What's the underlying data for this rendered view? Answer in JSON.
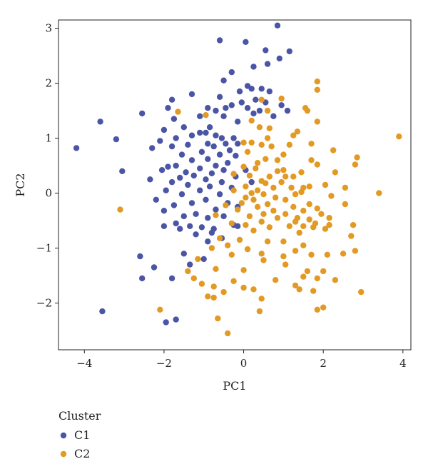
{
  "chart_data": {
    "type": "scatter",
    "title": "",
    "xlabel": "PC1",
    "ylabel": "PC2",
    "xlim": [
      -4.65,
      4.2
    ],
    "ylim": [
      -2.85,
      3.15
    ],
    "xticks": [
      -4,
      -2,
      0,
      2,
      4
    ],
    "yticks": [
      -2,
      -1,
      0,
      1,
      2,
      3
    ],
    "xtick_labels": [
      "−4",
      "−2",
      "0",
      "2",
      "4"
    ],
    "ytick_labels": [
      "−2",
      "−1",
      "0",
      "1",
      "2",
      "3"
    ],
    "grid": false,
    "legend": {
      "title": "Cluster",
      "placement": "bottom-left-outside"
    },
    "series": [
      {
        "name": "C1",
        "color": "#4b55a6",
        "points": [
          [
            0.85,
            3.05
          ],
          [
            -0.6,
            2.78
          ],
          [
            0.05,
            2.75
          ],
          [
            0.55,
            2.6
          ],
          [
            1.15,
            2.58
          ],
          [
            0.9,
            2.45
          ],
          [
            0.6,
            2.35
          ],
          [
            0.25,
            2.3
          ],
          [
            -0.3,
            2.2
          ],
          [
            -0.5,
            2.05
          ],
          [
            0.1,
            1.95
          ],
          [
            0.2,
            1.9
          ],
          [
            0.45,
            1.9
          ],
          [
            0.65,
            1.85
          ],
          [
            -0.1,
            1.85
          ],
          [
            -1.3,
            1.8
          ],
          [
            -1.8,
            1.7
          ],
          [
            -0.6,
            1.75
          ],
          [
            0.3,
            1.7
          ],
          [
            0.55,
            1.65
          ],
          [
            0.95,
            1.6
          ],
          [
            -0.05,
            1.65
          ],
          [
            -0.3,
            1.6
          ],
          [
            -0.45,
            1.55
          ],
          [
            -0.7,
            1.5
          ],
          [
            -0.9,
            1.55
          ],
          [
            -1.9,
            1.55
          ],
          [
            -2.55,
            1.45
          ],
          [
            0.1,
            1.55
          ],
          [
            0.4,
            1.5
          ],
          [
            1.1,
            1.5
          ],
          [
            0.25,
            1.45
          ],
          [
            0.75,
            1.4
          ],
          [
            -0.5,
            1.4
          ],
          [
            -1.1,
            1.4
          ],
          [
            -1.75,
            1.35
          ],
          [
            -0.15,
            1.3
          ],
          [
            -0.85,
            1.2
          ],
          [
            -1.5,
            1.2
          ],
          [
            -3.6,
            1.3
          ],
          [
            -2.0,
            1.15
          ],
          [
            -1.1,
            1.1
          ],
          [
            -0.95,
            1.1
          ],
          [
            -0.7,
            1.05
          ],
          [
            -1.3,
            1.05
          ],
          [
            -0.55,
            1.0
          ],
          [
            -0.25,
            1.0
          ],
          [
            -1.7,
            1.0
          ],
          [
            -2.1,
            0.95
          ],
          [
            -3.2,
            0.98
          ],
          [
            -4.2,
            0.82
          ],
          [
            -0.9,
            0.9
          ],
          [
            -0.45,
            0.9
          ],
          [
            -0.15,
            0.9
          ],
          [
            -1.4,
            0.88
          ],
          [
            -0.75,
            0.85
          ],
          [
            -1.8,
            0.85
          ],
          [
            -2.3,
            0.82
          ],
          [
            -0.35,
            0.78
          ],
          [
            -1.05,
            0.75
          ],
          [
            -0.6,
            0.7
          ],
          [
            -1.55,
            0.7
          ],
          [
            -0.2,
            0.68
          ],
          [
            -0.9,
            0.62
          ],
          [
            -1.3,
            0.6
          ],
          [
            -0.4,
            0.55
          ],
          [
            -0.7,
            0.5
          ],
          [
            -1.7,
            0.5
          ],
          [
            -1.9,
            0.48
          ],
          [
            -2.05,
            0.42
          ],
          [
            -1.1,
            0.45
          ],
          [
            -0.5,
            0.42
          ],
          [
            0.05,
            0.42
          ],
          [
            -3.05,
            0.4
          ],
          [
            -1.45,
            0.38
          ],
          [
            -0.8,
            0.36
          ],
          [
            -1.25,
            0.32
          ],
          [
            -0.2,
            0.3
          ],
          [
            -1.6,
            0.28
          ],
          [
            -0.95,
            0.25
          ],
          [
            -2.35,
            0.25
          ],
          [
            -1.8,
            0.2
          ],
          [
            -0.55,
            0.2
          ],
          [
            0.2,
            0.2
          ],
          [
            -1.4,
            0.15
          ],
          [
            -0.85,
            0.12
          ],
          [
            -0.3,
            0.1
          ],
          [
            -1.95,
            0.05
          ],
          [
            -1.1,
            0.05
          ],
          [
            -1.55,
            -0.02
          ],
          [
            -0.6,
            -0.02
          ],
          [
            -2.2,
            -0.12
          ],
          [
            -0.95,
            -0.12
          ],
          [
            -1.3,
            -0.18
          ],
          [
            -0.4,
            -0.18
          ],
          [
            -1.75,
            -0.22
          ],
          [
            -0.15,
            -0.25
          ],
          [
            -0.7,
            -0.3
          ],
          [
            -2.0,
            -0.32
          ],
          [
            -1.2,
            -0.38
          ],
          [
            -1.5,
            -0.42
          ],
          [
            -0.5,
            -0.42
          ],
          [
            -0.9,
            -0.45
          ],
          [
            -1.7,
            -0.55
          ],
          [
            -1.35,
            -0.6
          ],
          [
            -0.25,
            -0.58
          ],
          [
            -2.0,
            -0.6
          ],
          [
            -1.05,
            -0.62
          ],
          [
            -1.6,
            -0.65
          ],
          [
            -0.75,
            -0.65
          ],
          [
            -0.15,
            -0.6
          ],
          [
            -0.8,
            -0.72
          ],
          [
            -1.2,
            -0.75
          ],
          [
            -0.55,
            -0.82
          ],
          [
            -0.9,
            -0.88
          ],
          [
            -1.5,
            -1.1
          ],
          [
            -1.0,
            -1.2
          ],
          [
            -2.6,
            -1.15
          ],
          [
            -1.35,
            -1.3
          ],
          [
            -2.25,
            -1.35
          ],
          [
            -1.8,
            -1.55
          ],
          [
            -2.55,
            -1.55
          ],
          [
            -3.55,
            -2.15
          ],
          [
            -1.95,
            -2.35
          ],
          [
            -1.7,
            -2.3
          ]
        ]
      },
      {
        "name": "C2",
        "color": "#e39a23",
        "points": [
          [
            1.85,
            2.03
          ],
          [
            1.85,
            1.88
          ],
          [
            0.95,
            1.72
          ],
          [
            0.45,
            1.7
          ],
          [
            1.55,
            1.55
          ],
          [
            0.6,
            1.5
          ],
          [
            1.6,
            1.5
          ],
          [
            1.85,
            1.3
          ],
          [
            -1.65,
            1.48
          ],
          [
            -0.95,
            1.42
          ],
          [
            0.2,
            1.32
          ],
          [
            0.4,
            1.2
          ],
          [
            0.65,
            1.18
          ],
          [
            1.35,
            1.12
          ],
          [
            1.25,
            1.05
          ],
          [
            3.9,
            1.03
          ],
          [
            0.6,
            1.0
          ],
          [
            0.2,
            0.92
          ],
          [
            0.45,
            0.88
          ],
          [
            0.0,
            0.92
          ],
          [
            0.7,
            0.85
          ],
          [
            1.15,
            0.88
          ],
          [
            1.7,
            0.9
          ],
          [
            2.25,
            0.78
          ],
          [
            0.1,
            0.75
          ],
          [
            1.0,
            0.7
          ],
          [
            2.85,
            0.65
          ],
          [
            0.55,
            0.62
          ],
          [
            0.85,
            0.6
          ],
          [
            1.7,
            0.6
          ],
          [
            0.35,
            0.55
          ],
          [
            1.85,
            0.52
          ],
          [
            2.8,
            0.52
          ],
          [
            0.0,
            0.48
          ],
          [
            0.3,
            0.45
          ],
          [
            1.0,
            0.42
          ],
          [
            0.85,
            0.4
          ],
          [
            1.45,
            0.38
          ],
          [
            2.3,
            0.38
          ],
          [
            -0.25,
            0.35
          ],
          [
            0.15,
            0.32
          ],
          [
            0.65,
            0.3
          ],
          [
            1.05,
            0.3
          ],
          [
            1.25,
            0.3
          ],
          [
            0.45,
            0.22
          ],
          [
            0.55,
            0.18
          ],
          [
            0.95,
            0.2
          ],
          [
            2.05,
            0.15
          ],
          [
            0.05,
            0.12
          ],
          [
            0.75,
            0.1
          ],
          [
            1.2,
            0.1
          ],
          [
            1.5,
            0.1
          ],
          [
            1.65,
            0.12
          ],
          [
            0.35,
            0.05
          ],
          [
            2.55,
            0.1
          ],
          [
            -0.25,
            0.05
          ],
          [
            0.2,
            0.0
          ],
          [
            1.45,
            0.02
          ],
          [
            3.4,
            0.0
          ],
          [
            0.5,
            -0.02
          ],
          [
            1.3,
            -0.02
          ],
          [
            2.2,
            -0.05
          ],
          [
            0.05,
            -0.08
          ],
          [
            0.8,
            -0.08
          ],
          [
            0.25,
            -0.12
          ],
          [
            1.05,
            -0.12
          ],
          [
            -0.05,
            -0.18
          ],
          [
            0.6,
            -0.2
          ],
          [
            1.65,
            -0.2
          ],
          [
            2.55,
            -0.2
          ],
          [
            -0.45,
            -0.22
          ],
          [
            0.35,
            -0.25
          ],
          [
            1.25,
            -0.25
          ],
          [
            1.85,
            -0.28
          ],
          [
            -3.1,
            -0.3
          ],
          [
            -0.15,
            -0.3
          ],
          [
            0.75,
            -0.32
          ],
          [
            1.5,
            -0.32
          ],
          [
            0.5,
            -0.38
          ],
          [
            1.05,
            -0.38
          ],
          [
            1.95,
            -0.38
          ],
          [
            -0.7,
            -0.4
          ],
          [
            0.15,
            -0.42
          ],
          [
            0.85,
            -0.45
          ],
          [
            1.35,
            -0.45
          ],
          [
            2.15,
            -0.45
          ],
          [
            1.65,
            -0.48
          ],
          [
            1.3,
            -0.52
          ],
          [
            0.45,
            -0.52
          ],
          [
            1.8,
            -0.55
          ],
          [
            -0.3,
            -0.55
          ],
          [
            0.05,
            -0.58
          ],
          [
            1.15,
            -0.6
          ],
          [
            1.5,
            -0.6
          ],
          [
            0.65,
            -0.62
          ],
          [
            2.05,
            -0.65
          ],
          [
            2.75,
            -0.58
          ],
          [
            1.75,
            -0.62
          ],
          [
            0.25,
            -0.68
          ],
          [
            1.4,
            -0.72
          ],
          [
            2.15,
            -0.58
          ],
          [
            2.7,
            -0.78
          ],
          [
            -0.6,
            -0.82
          ],
          [
            -0.1,
            -0.85
          ],
          [
            0.6,
            -0.88
          ],
          [
            1.0,
            -0.88
          ],
          [
            -0.4,
            -0.95
          ],
          [
            1.5,
            -0.95
          ],
          [
            -0.8,
            -1.0
          ],
          [
            0.1,
            -1.02
          ],
          [
            1.3,
            -1.05
          ],
          [
            2.8,
            -1.05
          ],
          [
            0.45,
            -1.1
          ],
          [
            -0.3,
            -1.12
          ],
          [
            1.0,
            -1.15
          ],
          [
            1.7,
            -1.12
          ],
          [
            2.1,
            -1.12
          ],
          [
            2.5,
            -1.1
          ],
          [
            -1.15,
            -1.2
          ],
          [
            0.5,
            -1.22
          ],
          [
            1.05,
            -1.3
          ],
          [
            -1.4,
            -1.42
          ],
          [
            -0.7,
            -1.38
          ],
          [
            0.0,
            -1.4
          ],
          [
            1.6,
            -1.42
          ],
          [
            2.0,
            -1.42
          ],
          [
            1.5,
            -1.52
          ],
          [
            -1.25,
            -1.55
          ],
          [
            -0.25,
            -1.6
          ],
          [
            0.8,
            -1.58
          ],
          [
            1.85,
            -1.55
          ],
          [
            2.3,
            -1.58
          ],
          [
            -1.05,
            -1.65
          ],
          [
            -0.75,
            -1.7
          ],
          [
            0.0,
            -1.72
          ],
          [
            1.3,
            -1.68
          ],
          [
            1.4,
            -1.75
          ],
          [
            0.25,
            -1.75
          ],
          [
            1.75,
            -1.78
          ],
          [
            -0.5,
            -1.8
          ],
          [
            2.95,
            -1.8
          ],
          [
            0.45,
            -1.92
          ],
          [
            -0.75,
            -1.9
          ],
          [
            -0.9,
            -1.88
          ],
          [
            -2.1,
            -2.12
          ],
          [
            0.4,
            -2.15
          ],
          [
            1.85,
            -2.12
          ],
          [
            2.0,
            -2.08
          ],
          [
            -0.65,
            -2.28
          ],
          [
            -0.4,
            -2.55
          ]
        ]
      }
    ]
  }
}
